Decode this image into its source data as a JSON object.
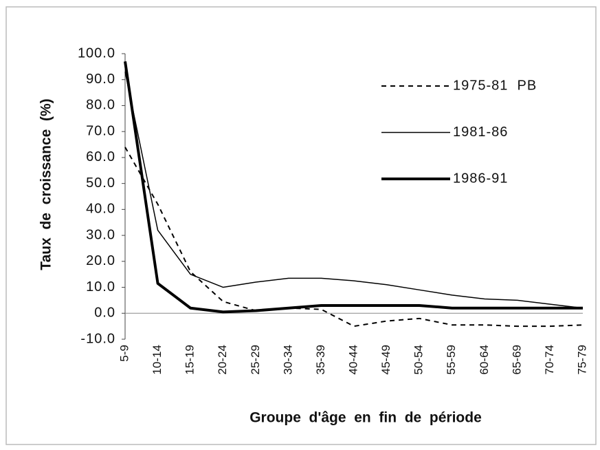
{
  "chart_data": {
    "type": "line",
    "ylabel": "Taux  de  croissance  (%)",
    "xlabel": "Groupe  d'âge  en  fin  de  période",
    "categories": [
      "5-9",
      "10-14",
      "15-19",
      "20-24",
      "25-29",
      "30-34",
      "35-39",
      "40-44",
      "45-49",
      "50-54",
      "55-59",
      "60-64",
      "65-69",
      "70-74",
      "75-79"
    ],
    "ylim": [
      -10,
      100
    ],
    "yticks": [
      {
        "value": -10,
        "label": "-10.0"
      },
      {
        "value": 0,
        "label": "0.0"
      },
      {
        "value": 10,
        "label": "10.0"
      },
      {
        "value": 20,
        "label": "20.0"
      },
      {
        "value": 30,
        "label": "30.0"
      },
      {
        "value": 40,
        "label": "40.0"
      },
      {
        "value": 50,
        "label": "50.0"
      },
      {
        "value": 60,
        "label": "60.0"
      },
      {
        "value": 70,
        "label": "70.0"
      },
      {
        "value": 80,
        "label": "80.0"
      },
      {
        "value": 90,
        "label": "90.0"
      },
      {
        "value": 100,
        "label": "100.0"
      }
    ],
    "legend": "upper right",
    "series": [
      {
        "name": "1975-81  PB",
        "color": "#000000",
        "line_width": 2,
        "dashed": true,
        "values": [
          64,
          42,
          16,
          4.5,
          1,
          2,
          1.5,
          -5,
          -3,
          -2,
          -4.5,
          -4.5,
          -5,
          -5,
          -4.5
        ]
      },
      {
        "name": "1981-86",
        "color": "#000000",
        "line_width": 1.5,
        "dashed": false,
        "values": [
          93,
          32,
          15,
          10,
          12,
          13.5,
          13.5,
          12.5,
          11,
          9,
          7,
          5.5,
          5,
          3.5,
          2
        ]
      },
      {
        "name": "1986-91",
        "color": "#000000",
        "line_width": 4,
        "dashed": false,
        "values": [
          97,
          11.5,
          2,
          0.5,
          1,
          2,
          3,
          3,
          3,
          3,
          2,
          2,
          2,
          2,
          2
        ]
      }
    ]
  }
}
